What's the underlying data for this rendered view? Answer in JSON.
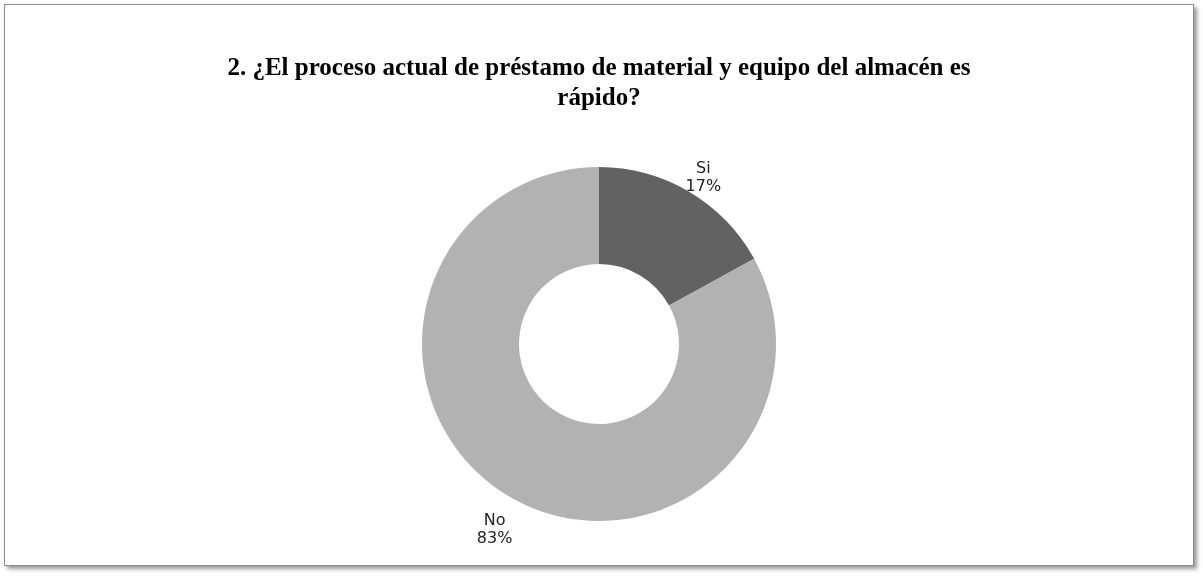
{
  "chart_data": {
    "type": "donut",
    "title": "2. ¿El proceso actual de préstamo de material y equipo del almacén es rápido?",
    "categories": [
      "Si",
      "No"
    ],
    "values": [
      17,
      83
    ],
    "value_labels": [
      "17%",
      "83%"
    ],
    "colors": [
      "#626262",
      "#b2b2b2"
    ],
    "legend": false
  }
}
